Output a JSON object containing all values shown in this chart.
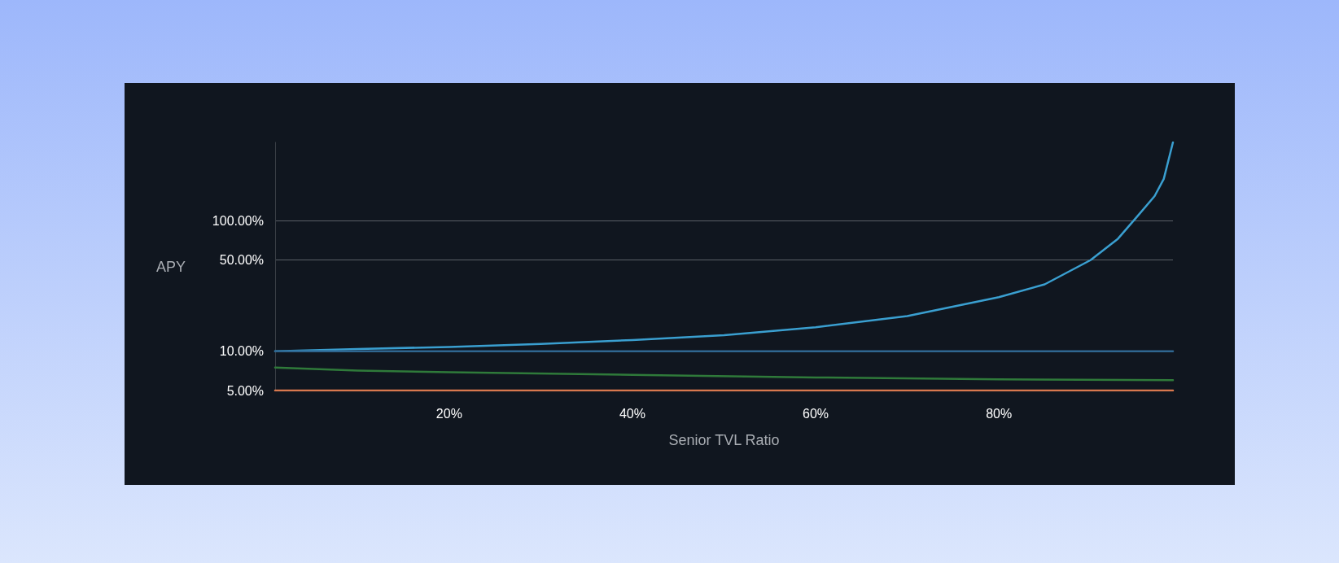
{
  "chart_data": {
    "type": "line",
    "xlabel": "Senior TVL Ratio",
    "ylabel": "APY",
    "log": "y",
    "grid": "y",
    "marker": "none",
    "line_style": "solid",
    "xlim": [
      1,
      99
    ],
    "xticks": [
      {
        "value": 20,
        "label": "20%"
      },
      {
        "value": 40,
        "label": "40%"
      },
      {
        "value": 60,
        "label": "60%"
      },
      {
        "value": 80,
        "label": "80%"
      }
    ],
    "ylim": [
      5,
      400
    ],
    "yticks": [
      {
        "value": 5,
        "label": "5.00%"
      },
      {
        "value": 10,
        "label": "10.00%"
      },
      {
        "value": 50,
        "label": "50.00%"
      },
      {
        "value": 100,
        "label": "100.00%"
      }
    ],
    "series": [
      {
        "color": "#3a9fd0",
        "x": [
          1,
          10,
          20,
          30,
          40,
          50,
          60,
          70,
          80,
          85,
          90,
          93,
          95,
          97,
          98,
          99
        ],
        "values": [
          10,
          10.4,
          10.8,
          11.4,
          12.2,
          13.3,
          15.3,
          18.6,
          26,
          32.6,
          50,
          73,
          106,
          155,
          210,
          400
        ]
      },
      {
        "color": "#2f7a3a",
        "x": [
          1,
          10,
          20,
          40,
          60,
          80,
          99
        ],
        "values": [
          7.5,
          7.1,
          6.9,
          6.6,
          6.3,
          6.1,
          6.0
        ]
      },
      {
        "color": "#2f6690",
        "x": [
          1,
          99
        ],
        "values": [
          10,
          10
        ]
      },
      {
        "color": "#d8784e",
        "x": [
          1,
          99
        ],
        "values": [
          5,
          5
        ]
      }
    ]
  }
}
